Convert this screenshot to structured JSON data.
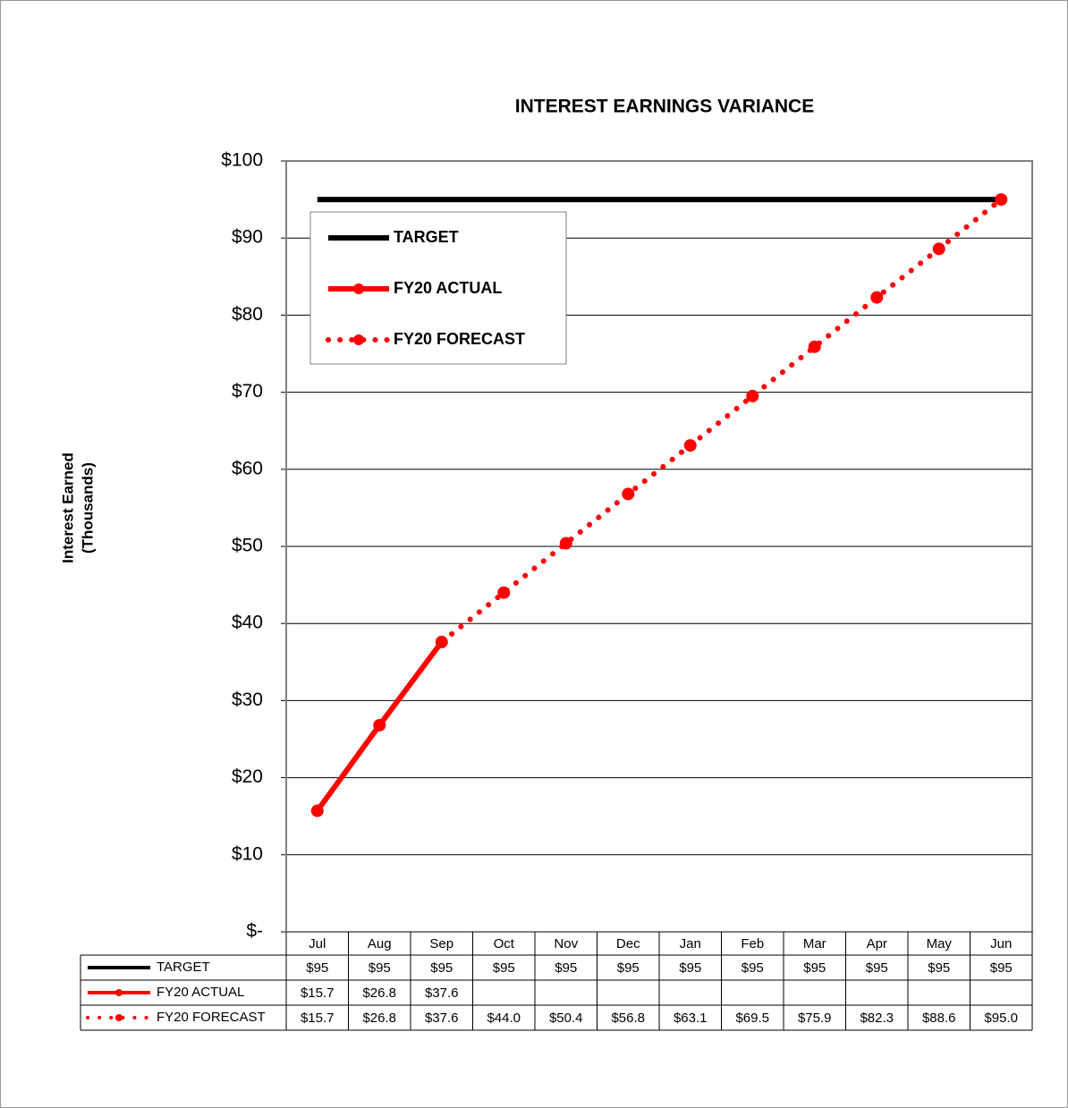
{
  "chart_data": {
    "type": "line",
    "title": "INTEREST EARNINGS VARIANCE",
    "y_label": [
      "Interest Earned",
      "(Thousands)"
    ],
    "categories": [
      "Jul",
      "Aug",
      "Sep",
      "Oct",
      "Nov",
      "Dec",
      "Jan",
      "Feb",
      "Mar",
      "Apr",
      "May",
      "Jun"
    ],
    "series": [
      {
        "name": "TARGET",
        "color": "#000000",
        "line_style": "solid",
        "marker": false,
        "values": [
          95,
          95,
          95,
          95,
          95,
          95,
          95,
          95,
          95,
          95,
          95,
          95
        ],
        "value_labels": [
          "$95",
          "$95",
          "$95",
          "$95",
          "$95",
          "$95",
          "$95",
          "$95",
          "$95",
          "$95",
          "$95",
          "$95"
        ]
      },
      {
        "name": "FY20 ACTUAL",
        "color": "#ff0000",
        "line_style": "solid",
        "marker": true,
        "values": [
          15.7,
          26.8,
          37.6,
          null,
          null,
          null,
          null,
          null,
          null,
          null,
          null,
          null
        ],
        "value_labels": [
          "$15.7",
          "$26.8",
          "$37.6",
          null,
          null,
          null,
          null,
          null,
          null,
          null,
          null,
          null
        ]
      },
      {
        "name": "FY20 FORECAST",
        "color": "#ff0000",
        "line_style": "dotted",
        "marker": true,
        "values": [
          15.7,
          26.8,
          37.6,
          44.0,
          50.4,
          56.8,
          63.1,
          69.5,
          75.9,
          82.3,
          88.6,
          95.0
        ],
        "value_labels": [
          "$15.7",
          "$26.8",
          "$37.6",
          "$44.0",
          "$50.4",
          "$56.8",
          "$63.1",
          "$69.5",
          "$75.9",
          "$82.3",
          "$88.6",
          "$95.0"
        ]
      }
    ],
    "ylim": [
      0,
      100
    ],
    "yticks": [
      {
        "value": 0,
        "label": "$-"
      },
      {
        "value": 10,
        "label": "$10"
      },
      {
        "value": 20,
        "label": "$20"
      },
      {
        "value": 30,
        "label": "$30"
      },
      {
        "value": 40,
        "label": "$40"
      },
      {
        "value": 50,
        "label": "$50"
      },
      {
        "value": 60,
        "label": "$60"
      },
      {
        "value": 70,
        "label": "$70"
      },
      {
        "value": 80,
        "label": "$80"
      },
      {
        "value": 90,
        "label": "$90"
      },
      {
        "value": 100,
        "label": "$100"
      }
    ],
    "grid": true,
    "legend": "upper left",
    "data_table": true
  }
}
